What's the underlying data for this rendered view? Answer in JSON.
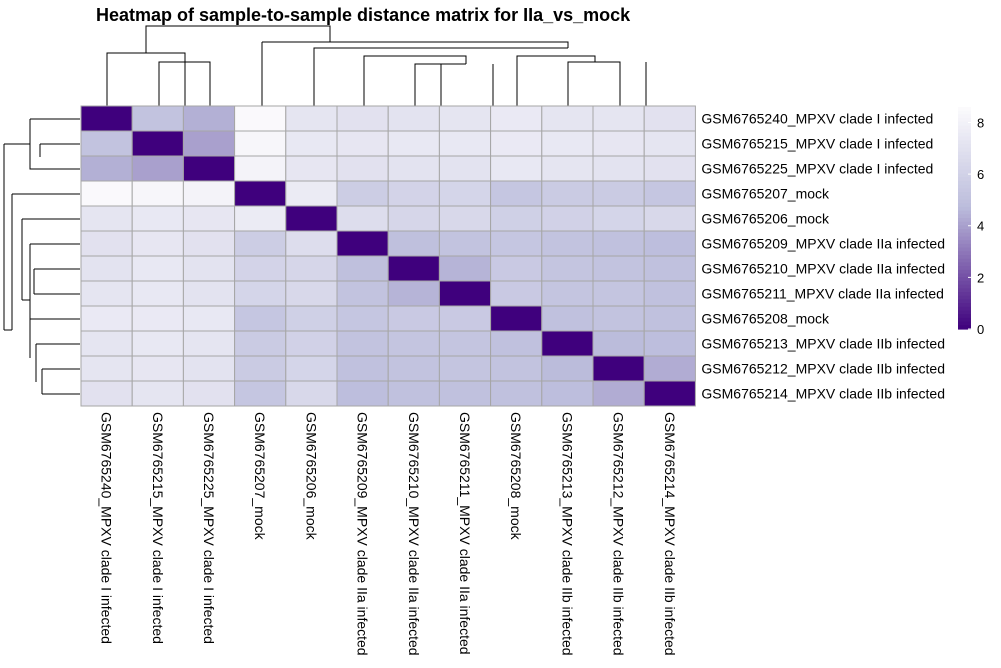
{
  "chart_data": {
    "type": "heatmap",
    "title": "Heatmap of sample-to-sample distance matrix for IIa_vs_mock",
    "row_labels": [
      "GSM6765240_MPXV clade I infected",
      "GSM6765215_MPXV clade I infected",
      "GSM6765225_MPXV clade I infected",
      "GSM6765207_mock",
      "GSM6765206_mock",
      "GSM6765209_MPXV clade IIa infected",
      "GSM6765210_MPXV clade IIa infected",
      "GSM6765211_MPXV clade IIa infected",
      "GSM6765208_mock",
      "GSM6765213_MPXV clade IIb infected",
      "GSM6765212_MPXV clade IIb infected",
      "GSM6765214_MPXV clade IIb infected"
    ],
    "column_labels": [
      "GSM6765240_MPXV clade I infected",
      "GSM6765215_MPXV clade I infected",
      "GSM6765225_MPXV clade I infected",
      "GSM6765207_mock",
      "GSM6765206_mock",
      "GSM6765209_MPXV clade IIa infected",
      "GSM6765210_MPXV clade IIa infected",
      "GSM6765211_MPXV clade IIa infected",
      "GSM6765208_mock",
      "GSM6765213_MPXV clade IIb infected",
      "GSM6765212_MPXV clade IIb infected",
      "GSM6765214_MPXV clade IIb infected"
    ],
    "values": [
      [
        0.0,
        5.1,
        4.4,
        8.5,
        7.2,
        7.0,
        7.1,
        7.2,
        7.5,
        7.2,
        7.2,
        7.0
      ],
      [
        5.1,
        0.0,
        4.0,
        8.3,
        7.4,
        7.3,
        7.4,
        7.4,
        7.5,
        7.4,
        7.3,
        7.2
      ],
      [
        4.4,
        4.0,
        0.0,
        8.1,
        7.3,
        7.0,
        7.1,
        7.1,
        7.4,
        7.2,
        7.1,
        7.0
      ],
      [
        8.5,
        8.3,
        8.1,
        0.0,
        7.6,
        5.7,
        6.1,
        6.2,
        5.3,
        5.6,
        5.6,
        5.3
      ],
      [
        7.2,
        7.4,
        7.3,
        7.6,
        0.0,
        6.7,
        6.3,
        6.4,
        5.9,
        6.0,
        6.2,
        6.4
      ],
      [
        7.0,
        7.3,
        7.0,
        5.7,
        6.7,
        0.0,
        4.9,
        5.1,
        5.3,
        5.1,
        5.0,
        4.8
      ],
      [
        7.1,
        7.4,
        7.1,
        6.1,
        6.3,
        4.9,
        0.0,
        4.5,
        5.5,
        5.2,
        5.1,
        5.0
      ],
      [
        7.2,
        7.4,
        7.1,
        6.2,
        6.4,
        5.1,
        4.5,
        0.0,
        5.5,
        5.2,
        5.2,
        5.0
      ],
      [
        7.5,
        7.5,
        7.4,
        5.3,
        5.9,
        5.3,
        5.5,
        5.5,
        0.0,
        5.0,
        5.1,
        5.0
      ],
      [
        7.2,
        7.4,
        7.2,
        5.6,
        6.0,
        5.1,
        5.2,
        5.2,
        5.0,
        0.0,
        4.7,
        4.8
      ],
      [
        7.2,
        7.3,
        7.1,
        5.6,
        6.2,
        5.0,
        5.1,
        5.2,
        5.1,
        4.7,
        0.0,
        4.3
      ],
      [
        7.0,
        7.2,
        7.0,
        5.3,
        6.4,
        4.8,
        5.0,
        5.0,
        5.0,
        4.8,
        4.3,
        0.0
      ]
    ],
    "color_scale": {
      "min": 0,
      "max": 8.6,
      "low_color": "#3f007d",
      "mid_color": "#bcbddc",
      "high_color": "#fcfbfd"
    },
    "legend_ticks": [
      "0",
      "2",
      "4",
      "6",
      "8"
    ],
    "legend_tick_values": [
      0,
      2,
      4,
      6,
      8
    ],
    "grid_color": "#a6a6a6",
    "column_dendrogram": {
      "merges": [
        [
          5,
          4,
          0.36
        ],
        [
          9,
          8,
          0.54
        ],
        [
          10,
          11,
          0.72
        ],
        [
          6,
          7,
          0.82
        ],
        [
          0,
          1,
          1.0
        ],
        [
          3,
          2,
          1.0
        ],
        [
          7,
          8,
          1.0
        ]
      ],
      "note_type": "leaf-index pairs"
    }
  }
}
